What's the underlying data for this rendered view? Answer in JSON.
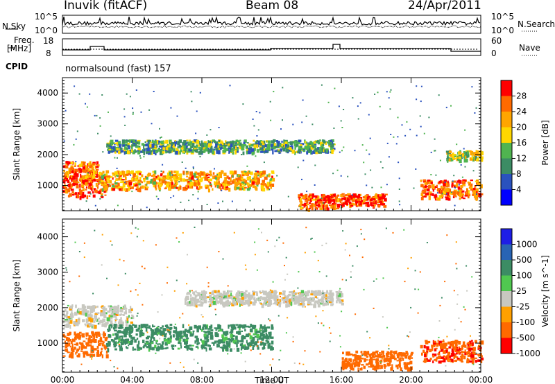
{
  "header": {
    "station": "Inuvik (fitACF)",
    "beam": "Beam 08",
    "date": "24/Apr/2011"
  },
  "summary_panels": {
    "nsky_label": "N.Sky",
    "nsearch_label": "N.Search",
    "noise_ticks_left": [
      "10^5",
      "10^0"
    ],
    "noise_ticks_right": [
      "10^5",
      "10^0"
    ],
    "freq_label_lines": [
      "Freq.",
      "[MHz]"
    ],
    "freq_ticks": [
      "18",
      "8"
    ],
    "nave_label": "Nave",
    "nave_ticks": [
      "60",
      "0"
    ],
    "cpid_label": "CPID",
    "cpid_value": "normalsound (fast) 157"
  },
  "colors": {
    "power_scale": [
      "#0000ff",
      "#2a52be",
      "#3c8c64",
      "#50b450",
      "#ffd700",
      "#ffa500",
      "#ff6a00",
      "#ff0000"
    ],
    "velocity_scale": [
      "#1e1ee6",
      "#2864b4",
      "#3c8c64",
      "#50c850",
      "#c8c8c0",
      "#ffa000",
      "#ff6a00",
      "#ff0000"
    ],
    "ground_scatter": "#c8c8c0"
  },
  "chart_data": [
    {
      "type": "heatmap",
      "panel": "power",
      "ylabel": "Slant Range [km]",
      "xlabel": "Time UT",
      "x_ticks": [
        "00:00",
        "04:00",
        "08:00",
        "12:00",
        "16:00",
        "20:00",
        "00:00"
      ],
      "y_ticks": [
        "1000",
        "2000",
        "3000",
        "4000"
      ],
      "xlim_hours": [
        0,
        24
      ],
      "ylim_km": [
        180,
        4500
      ],
      "colorbar_label": "Power [dB]",
      "colorbar_ticks": [
        "4",
        "8",
        "12",
        "16",
        "20",
        "24",
        "28"
      ],
      "features": [
        {
          "t_start": 0.0,
          "t_end": 2.5,
          "r_center": 1000,
          "r_width": 350,
          "level": 28
        },
        {
          "t_start": 0.0,
          "t_end": 2.0,
          "r_center": 1550,
          "r_width": 250,
          "level": 24
        },
        {
          "t_start": 2.0,
          "t_end": 12.0,
          "r_center": 1200,
          "r_width": 300,
          "level": 22
        },
        {
          "t_start": 2.5,
          "t_end": 15.5,
          "r_center": 2300,
          "r_width": 200,
          "level": 12
        },
        {
          "t_start": 13.5,
          "t_end": 16.0,
          "r_center": 500,
          "r_width": 250,
          "level": 26
        },
        {
          "t_start": 16.0,
          "t_end": 18.5,
          "r_center": 550,
          "r_width": 200,
          "level": 28
        },
        {
          "t_start": 20.5,
          "t_end": 24.0,
          "r_center": 900,
          "r_width": 300,
          "level": 26
        },
        {
          "t_start": 22.0,
          "t_end": 24.0,
          "r_center": 2000,
          "r_width": 150,
          "level": 16
        }
      ]
    },
    {
      "type": "heatmap",
      "panel": "velocity",
      "ylabel": "Slant Range [km]",
      "xlabel": "Time UT",
      "x_ticks": [
        "00:00",
        "04:00",
        "08:00",
        "12:00",
        "16:00",
        "20:00",
        "00:00"
      ],
      "y_ticks": [
        "1000",
        "2000",
        "3000",
        "4000"
      ],
      "xlim_hours": [
        0,
        24
      ],
      "ylim_km": [
        180,
        4500
      ],
      "colorbar_label": "Velocity [m s^-1]",
      "colorbar_ticks": [
        "1000",
        "500",
        "100",
        "25",
        "-25",
        "-100",
        "-500",
        "-1000"
      ],
      "features": [
        {
          "t_start": 0.0,
          "t_end": 2.5,
          "r_center": 1000,
          "r_width": 350,
          "velocity": -300
        },
        {
          "t_start": 0.0,
          "t_end": 4.0,
          "r_center": 1800,
          "r_width": 300,
          "velocity": 0
        },
        {
          "t_start": 2.5,
          "t_end": 12.0,
          "r_center": 1200,
          "r_width": 350,
          "velocity": 200
        },
        {
          "t_start": 7.0,
          "t_end": 16.0,
          "r_center": 2300,
          "r_width": 200,
          "velocity": 0
        },
        {
          "t_start": 16.0,
          "t_end": 20.0,
          "r_center": 550,
          "r_width": 250,
          "velocity": -300
        },
        {
          "t_start": 20.5,
          "t_end": 24.0,
          "r_center": 800,
          "r_width": 300,
          "velocity": -400
        }
      ]
    }
  ]
}
